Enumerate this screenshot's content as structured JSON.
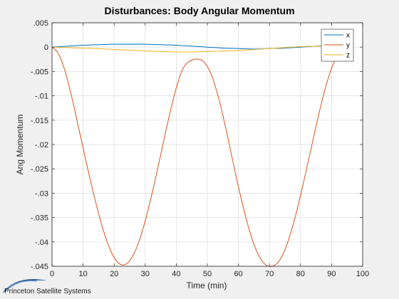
{
  "chart_data": {
    "type": "line",
    "title": "Disturbances: Body Angular Momentum",
    "xlabel": "Time (min)",
    "ylabel": "Ang Momentum",
    "xlim": [
      0,
      100
    ],
    "ylim": [
      -0.045,
      0.005
    ],
    "x_ticks": [
      0,
      10,
      20,
      30,
      40,
      50,
      60,
      70,
      80,
      90,
      100
    ],
    "y_ticks": [
      0.005,
      0,
      -0.005,
      -0.01,
      -0.015,
      -0.02,
      -0.025,
      -0.03,
      -0.035,
      -0.04,
      -0.045
    ],
    "grid": true,
    "legend": "top-right",
    "series": [
      {
        "name": "x",
        "color": "#0072BD",
        "x": [
          0,
          5,
          10,
          15,
          20,
          25,
          30,
          35,
          40,
          45,
          50,
          55,
          60,
          65,
          70,
          75,
          80,
          85,
          90,
          95
        ],
        "values": [
          0,
          0.0002,
          0.0004,
          0.0005,
          0.0006,
          0.0006,
          0.0006,
          0.0005,
          0.0004,
          0.0002,
          0,
          -0.0002,
          -0.0003,
          -0.0004,
          -0.0003,
          -0.0002,
          0,
          0.0002,
          0.0004,
          0.0003
        ]
      },
      {
        "name": "y",
        "color": "#D95319",
        "x": [
          0,
          2,
          4,
          6,
          8,
          10,
          12,
          14,
          16,
          18,
          20,
          22,
          24,
          26,
          28,
          30,
          32,
          34,
          36,
          38,
          40,
          42,
          44,
          46,
          47.5,
          49,
          51,
          53,
          55,
          57,
          59,
          61,
          63,
          65,
          67,
          69,
          71,
          73,
          75,
          77,
          79,
          81,
          83,
          85,
          87,
          89,
          91,
          93,
          95
        ],
        "values": [
          0,
          -0.0013,
          -0.0045,
          -0.0093,
          -0.0149,
          -0.0207,
          -0.0264,
          -0.0317,
          -0.0365,
          -0.0404,
          -0.0432,
          -0.0446,
          -0.0445,
          -0.0429,
          -0.0399,
          -0.0357,
          -0.0306,
          -0.025,
          -0.0191,
          -0.0134,
          -0.0084,
          -0.0046,
          -0.003,
          -0.0025,
          -0.0025,
          -0.0031,
          -0.0052,
          -0.009,
          -0.014,
          -0.0198,
          -0.0258,
          -0.0314,
          -0.0364,
          -0.0405,
          -0.0433,
          -0.0448,
          -0.045,
          -0.044,
          -0.0416,
          -0.0378,
          -0.0331,
          -0.0277,
          -0.022,
          -0.0162,
          -0.0108,
          -0.0062,
          -0.0028,
          -0.0009,
          -0.0002
        ]
      },
      {
        "name": "z",
        "color": "#EDB120",
        "x": [
          0,
          5,
          10,
          15,
          20,
          25,
          30,
          35,
          40,
          45,
          50,
          55,
          60,
          65,
          70,
          75,
          80,
          85,
          90
        ],
        "values": [
          0,
          -0.0001,
          -0.0002,
          -0.0003,
          -0.0005,
          -0.0006,
          -0.0008,
          -0.0009,
          -0.001,
          -0.001,
          -0.0009,
          -0.0008,
          -0.0007,
          -0.0005,
          -0.0003,
          -0.0001,
          0.0001,
          0.0002,
          0.0002
        ]
      }
    ]
  },
  "branding": {
    "text": "Princeton Satellite Systems"
  }
}
